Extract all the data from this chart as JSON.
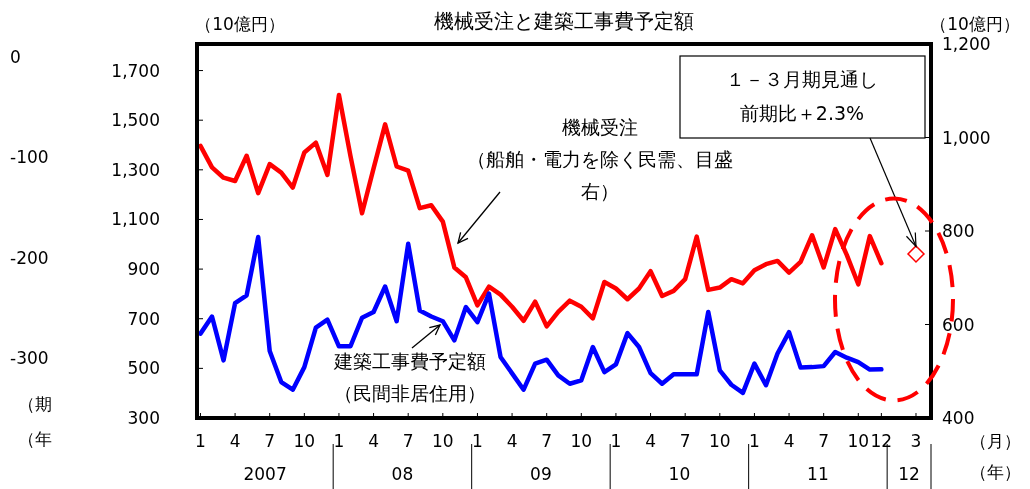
{
  "chart_data": {
    "type": "line",
    "title": "機械受注と建築工事費予定額",
    "ylabel": "（10億円）",
    "y2label": "（10億円）",
    "xlabel": "（月）",
    "categories": [
      "1",
      null,
      null,
      "4",
      null,
      null,
      "7",
      null,
      null,
      "10",
      null,
      null,
      "1",
      null,
      null,
      "4",
      null,
      null,
      "7",
      null,
      null,
      "10",
      null,
      null,
      "1",
      null,
      null,
      "4",
      null,
      null,
      "7",
      null,
      null,
      "10",
      null,
      null,
      "1",
      null,
      null,
      "4",
      null,
      null,
      "7",
      null,
      null,
      "10",
      null,
      null,
      "1",
      null,
      null,
      "4",
      null,
      null,
      "7",
      null,
      null,
      "10",
      null,
      "12",
      null,
      null,
      "3"
    ],
    "series": [
      {
        "name": "機械受注（船舶・電力を除く民需、目盛右）",
        "color": "#ff0000",
        "axis": "y2",
        "values": [
          982,
          936,
          914,
          907,
          961,
          881,
          943,
          925,
          893,
          968,
          989,
          920,
          1091,
          960,
          838,
          934,
          1028,
          938,
          929,
          849,
          855,
          820,
          722,
          701,
          641,
          681,
          664,
          638,
          608,
          649,
          596,
          627,
          651,
          638,
          613,
          691,
          677,
          654,
          677,
          714,
          661,
          672,
          697,
          788,
          674,
          679,
          697,
          688,
          716,
          729,
          736,
          711,
          734,
          791,
          722,
          804,
          749,
          686,
          789,
          731,
          null,
          null,
          null
        ]
      },
      {
        "name": "建築工事費予定額（民間非居住用）",
        "color": "#0000ff",
        "axis": "y",
        "values": [
          640,
          709,
          532,
          763,
          794,
          1029,
          570,
          445,
          414,
          505,
          664,
          696,
          589,
          589,
          704,
          727,
          830,
          690,
          1002,
          733,
          709,
          690,
          613,
          747,
          686,
          801,
          546,
          480,
          414,
          519,
          535,
          472,
          438,
          452,
          586,
          485,
          516,
          642,
          586,
          481,
          438,
          476,
          476,
          476,
          727,
          492,
          434,
          401,
          519,
          432,
          560,
          646,
          503,
          505,
          509,
          566,
          543,
          525,
          495,
          496,
          null,
          null,
          null
        ]
      },
      {
        "color": "#ff0000",
        "axis": "y2",
        "type": "scatter",
        "marker": "diamond",
        "values": [
          null,
          null,
          null,
          null,
          null,
          null,
          null,
          null,
          null,
          null,
          null,
          null,
          null,
          null,
          null,
          null,
          null,
          null,
          null,
          null,
          null,
          null,
          null,
          null,
          null,
          null,
          null,
          null,
          null,
          null,
          null,
          null,
          null,
          null,
          null,
          null,
          null,
          null,
          null,
          null,
          null,
          null,
          null,
          null,
          null,
          null,
          null,
          null,
          null,
          null,
          null,
          null,
          null,
          null,
          null,
          null,
          null,
          null,
          null,
          null,
          null,
          null,
          751
        ]
      }
    ],
    "ylim": [
      300,
      1807
    ],
    "yticks": [
      300,
      500,
      700,
      900,
      {
        "value": 1100,
        "label": "1,100"
      },
      {
        "value": 1300,
        "label": "1,300"
      },
      {
        "value": 1500,
        "label": "1,500"
      },
      {
        "value": 1700,
        "label": "1,700"
      }
    ],
    "y2lim": [
      400,
      1200
    ],
    "y2ticks": [
      400,
      600,
      800,
      {
        "value": 1000,
        "label": "1,000"
      },
      {
        "value": 1200,
        "label": "1,200"
      }
    ],
    "y3lim": [
      -360,
      13
    ],
    "y3ticks": [
      0,
      -100,
      -200,
      -300
    ],
    "annotations": [
      "2007",
      "08",
      "09",
      "10",
      "11",
      "12",
      "（年）",
      "（期",
      "（年",
      {
        "text": "１－３月期見通し前期比＋2.3%",
        "x": "3",
        "y": 959
      }
    ],
    "grid": false,
    "line_style": "solid"
  }
}
